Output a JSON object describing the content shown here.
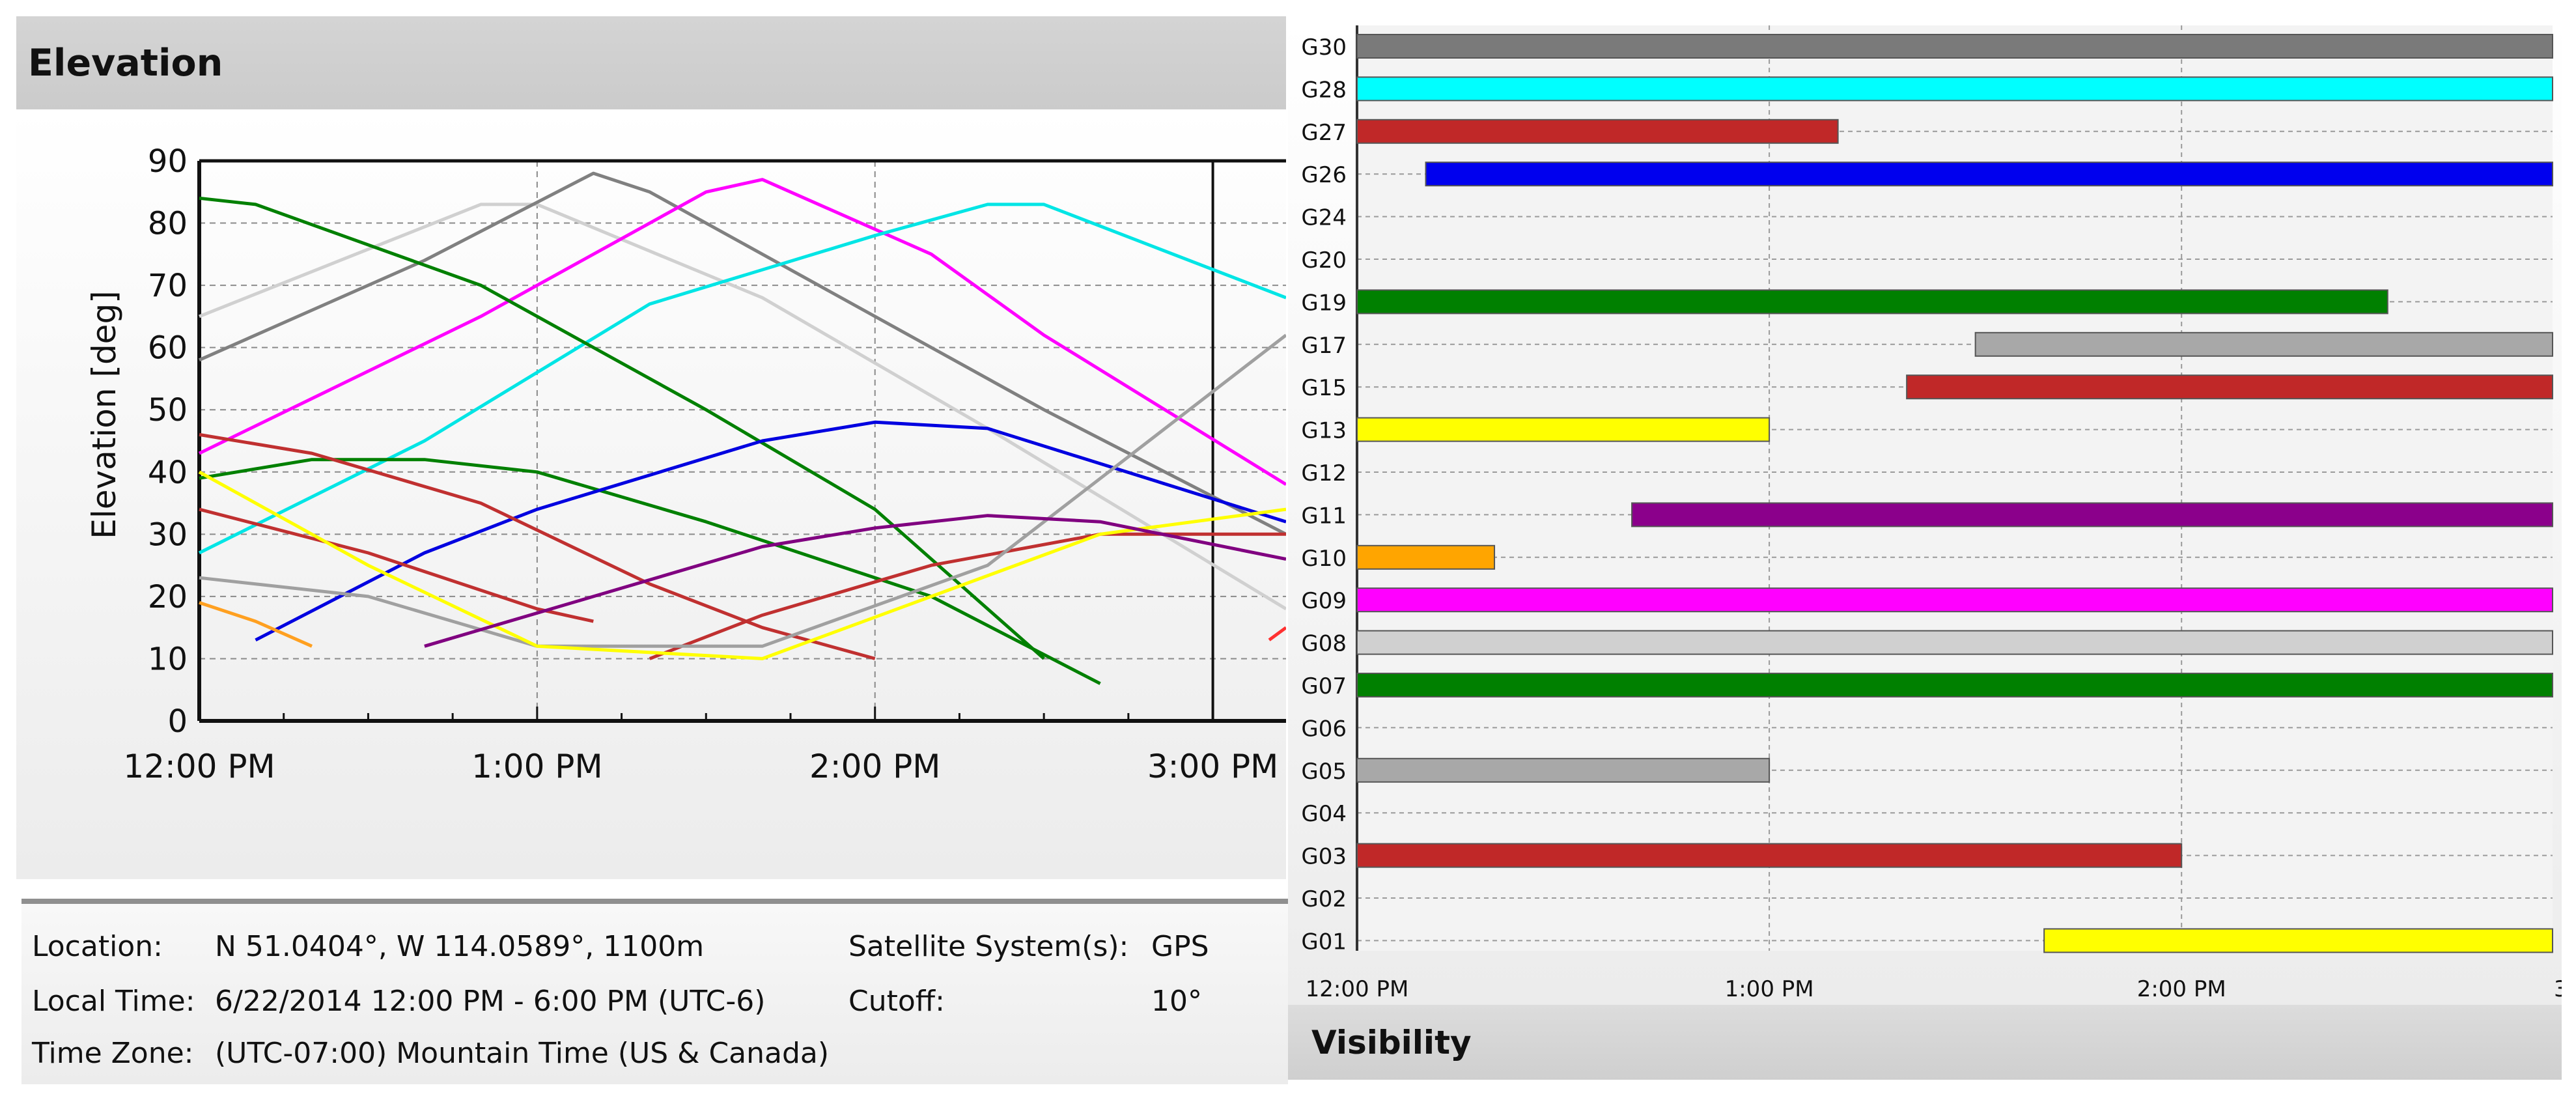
{
  "elevation_panel": {
    "title": "Elevation"
  },
  "visibility_panel": {
    "title": "Visibility"
  },
  "info": {
    "location_label": "Location:",
    "location_value": "N 51.0404°, W 114.0589°, 1100m",
    "local_time_label": "Local Time:",
    "local_time_value": "6/22/2014 12:00 PM - 6:00 PM (UTC-6)",
    "time_zone_label": "Time Zone:",
    "time_zone_value": "(UTC-07:00) Mountain Time (US & Canada)",
    "satellite_label": "Satellite System(s):",
    "satellite_value": "GPS",
    "cutoff_label": "Cutoff:",
    "cutoff_value": "10°"
  },
  "chart_data": [
    {
      "type": "line",
      "title": "Elevation",
      "ylabel": "Elevation [deg]",
      "xlabel": "",
      "x_unit": "minutes after 12:00 PM",
      "xlim": [
        0,
        193
      ],
      "ylim": [
        0,
        90
      ],
      "yticks": [
        0,
        10,
        20,
        30,
        40,
        50,
        60,
        70,
        80,
        90
      ],
      "xticks": [
        {
          "t": 0,
          "label": "12:00 PM"
        },
        {
          "t": 60,
          "label": "1:00 PM"
        },
        {
          "t": 120,
          "label": "2:00 PM"
        },
        {
          "t": 180,
          "label": "3:00 PM"
        }
      ],
      "grid": true,
      "series": [
        {
          "color": "#d0d0d0",
          "points": [
            [
              0,
              65
            ],
            [
              50,
              83
            ],
            [
              60,
              83
            ],
            [
              100,
              68
            ],
            [
              140,
              47
            ],
            [
              193,
              18
            ]
          ]
        },
        {
          "color": "#808080",
          "points": [
            [
              0,
              58
            ],
            [
              40,
              74
            ],
            [
              70,
              88
            ],
            [
              80,
              85
            ],
            [
              110,
              70
            ],
            [
              150,
              50
            ],
            [
              193,
              30
            ]
          ]
        },
        {
          "color": "#ff00ff",
          "points": [
            [
              0,
              43
            ],
            [
              50,
              65
            ],
            [
              90,
              85
            ],
            [
              100,
              87
            ],
            [
              130,
              75
            ],
            [
              150,
              62
            ],
            [
              193,
              38
            ]
          ]
        },
        {
          "color": "#00e5e5",
          "points": [
            [
              0,
              27
            ],
            [
              40,
              45
            ],
            [
              80,
              67
            ],
            [
              120,
              78
            ],
            [
              140,
              83
            ],
            [
              150,
              83
            ],
            [
              193,
              68
            ]
          ]
        },
        {
          "color": "#008000",
          "points": [
            [
              0,
              84
            ],
            [
              10,
              83
            ],
            [
              50,
              70
            ],
            [
              90,
              50
            ],
            [
              120,
              34
            ],
            [
              150,
              10
            ]
          ]
        },
        {
          "color": "#008000",
          "points": [
            [
              0,
              39
            ],
            [
              20,
              42
            ],
            [
              40,
              42
            ],
            [
              60,
              40
            ],
            [
              90,
              32
            ],
            [
              130,
              20
            ],
            [
              160,
              6
            ]
          ]
        },
        {
          "color": "#0000e0",
          "points": [
            [
              10,
              13
            ],
            [
              40,
              27
            ],
            [
              60,
              34
            ],
            [
              100,
              45
            ],
            [
              120,
              48
            ],
            [
              140,
              47
            ],
            [
              193,
              32
            ]
          ]
        },
        {
          "color": "#c03030",
          "points": [
            [
              0,
              46
            ],
            [
              20,
              43
            ],
            [
              50,
              35
            ],
            [
              80,
              22
            ],
            [
              100,
              15
            ],
            [
              120,
              10
            ]
          ]
        },
        {
          "color": "#c03030",
          "points": [
            [
              0,
              34
            ],
            [
              30,
              27
            ],
            [
              60,
              18
            ],
            [
              70,
              16
            ],
            [
              70,
              16
            ],
            [
              70,
              16
            ]
          ]
        },
        {
          "color": "#c03030",
          "points": [
            [
              80,
              10
            ],
            [
              100,
              17
            ],
            [
              130,
              25
            ],
            [
              160,
              30
            ],
            [
              193,
              30
            ]
          ]
        },
        {
          "color": "#a0a0a0",
          "points": [
            [
              0,
              23
            ],
            [
              30,
              20
            ],
            [
              60,
              12
            ],
            [
              100,
              12
            ],
            [
              140,
              25
            ],
            [
              193,
              62
            ]
          ]
        },
        {
          "color": "#ffff00",
          "points": [
            [
              0,
              40
            ],
            [
              30,
              25
            ],
            [
              60,
              12
            ],
            [
              100,
              10
            ],
            [
              130,
              20
            ],
            [
              160,
              30
            ],
            [
              193,
              34
            ]
          ]
        },
        {
          "color": "#800080",
          "points": [
            [
              40,
              12
            ],
            [
              70,
              20
            ],
            [
              100,
              28
            ],
            [
              120,
              31
            ],
            [
              140,
              33
            ],
            [
              160,
              32
            ],
            [
              193,
              26
            ]
          ]
        },
        {
          "color": "#ffa020",
          "points": [
            [
              0,
              19
            ],
            [
              10,
              16
            ],
            [
              20,
              12
            ]
          ]
        },
        {
          "color": "#ff3030",
          "points": [
            [
              190,
              13
            ],
            [
              193,
              15
            ]
          ]
        }
      ]
    },
    {
      "type": "bar",
      "title": "Visibility",
      "x_unit": "minutes after 12:00 PM",
      "xlim": [
        0,
        174
      ],
      "xticks": [
        {
          "t": 0,
          "label": "12:00 PM"
        },
        {
          "t": 60,
          "label": "1:00 PM"
        },
        {
          "t": 120,
          "label": "2:00 PM"
        },
        {
          "t": 174,
          "label": "3"
        }
      ],
      "categories": [
        "G30",
        "G28",
        "G27",
        "G26",
        "G24",
        "G20",
        "G19",
        "G17",
        "G15",
        "G13",
        "G12",
        "G11",
        "G10",
        "G09",
        "G08",
        "G07",
        "G06",
        "G05",
        "G04",
        "G03",
        "G02",
        "G01"
      ],
      "bars": [
        {
          "sat": "G30",
          "start": 0,
          "end": 174,
          "color": "#7a7a7a"
        },
        {
          "sat": "G28",
          "start": 0,
          "end": 174,
          "color": "#00ffff"
        },
        {
          "sat": "G27",
          "start": 0,
          "end": 70,
          "color": "#c02828"
        },
        {
          "sat": "G26",
          "start": 10,
          "end": 174,
          "color": "#0000ee"
        },
        {
          "sat": "G24",
          "start": null,
          "end": null,
          "color": ""
        },
        {
          "sat": "G20",
          "start": null,
          "end": null,
          "color": ""
        },
        {
          "sat": "G19",
          "start": 0,
          "end": 150,
          "color": "#008000"
        },
        {
          "sat": "G17",
          "start": 90,
          "end": 174,
          "color": "#a8a8a8"
        },
        {
          "sat": "G15",
          "start": 80,
          "end": 174,
          "color": "#c02828"
        },
        {
          "sat": "G13",
          "start": 0,
          "end": 60,
          "color": "#ffff00"
        },
        {
          "sat": "G12",
          "start": null,
          "end": null,
          "color": ""
        },
        {
          "sat": "G11",
          "start": 40,
          "end": 174,
          "color": "#8b008b"
        },
        {
          "sat": "G10",
          "start": 0,
          "end": 20,
          "color": "#ffa500"
        },
        {
          "sat": "G09",
          "start": 0,
          "end": 174,
          "color": "#ff00ff"
        },
        {
          "sat": "G08",
          "start": 0,
          "end": 174,
          "color": "#d0d0d0"
        },
        {
          "sat": "G07",
          "start": 0,
          "end": 174,
          "color": "#008000"
        },
        {
          "sat": "G06",
          "start": null,
          "end": null,
          "color": ""
        },
        {
          "sat": "G05",
          "start": 0,
          "end": 60,
          "color": "#a8a8a8"
        },
        {
          "sat": "G04",
          "start": null,
          "end": null,
          "color": ""
        },
        {
          "sat": "G03",
          "start": 0,
          "end": 120,
          "color": "#c02828"
        },
        {
          "sat": "G02",
          "start": null,
          "end": null,
          "color": ""
        },
        {
          "sat": "G01",
          "start": 100,
          "end": 174,
          "color": "#ffff00"
        }
      ]
    }
  ]
}
